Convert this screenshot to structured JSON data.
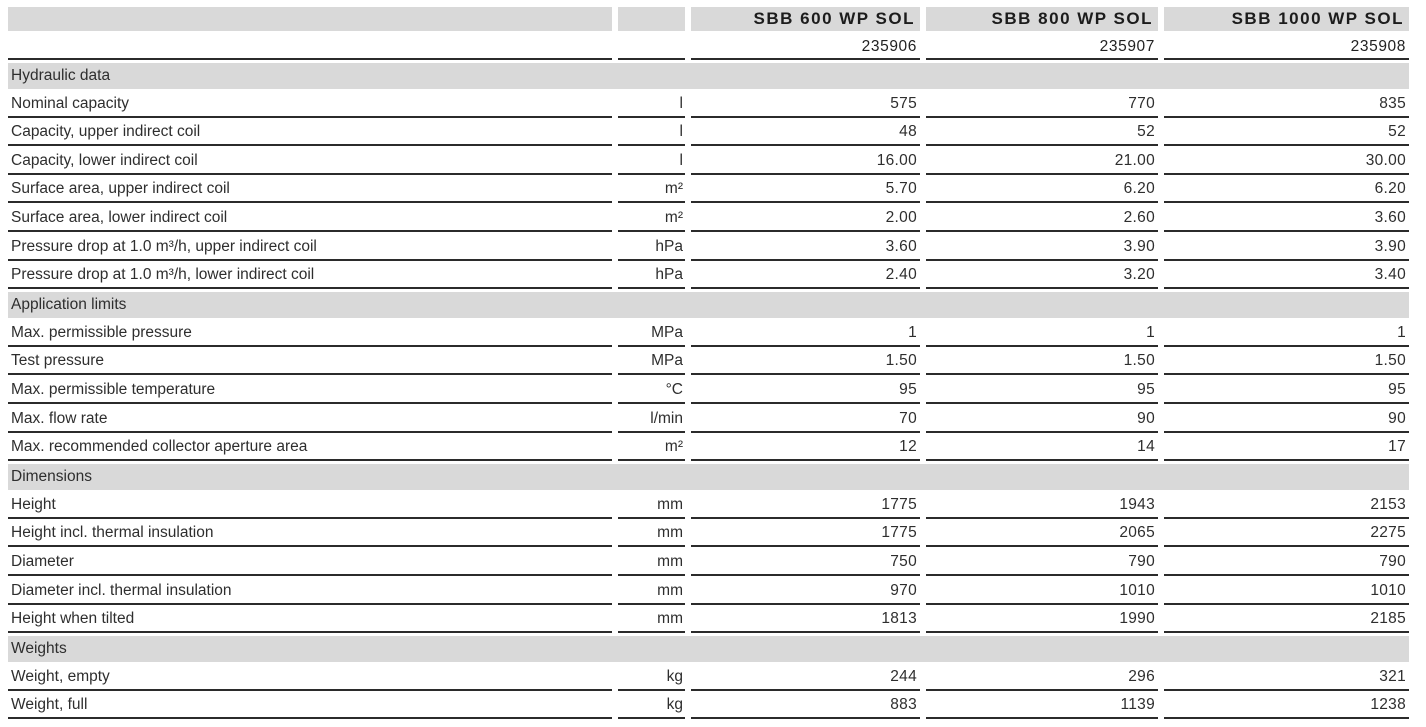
{
  "colors": {
    "header_bg": "#d9d9d9",
    "section_bg": "#d9d9d9",
    "border": "#2b2b2b",
    "text": "#2e2e2e"
  },
  "table": {
    "products": [
      {
        "name": "SBB 600 WP SOL",
        "article": "235906"
      },
      {
        "name": "SBB 800 WP SOL",
        "article": "235907"
      },
      {
        "name": "SBB 1000 WP SOL",
        "article": "235908"
      }
    ],
    "sections": [
      {
        "title": "Hydraulic data",
        "rows": [
          {
            "label": "Nominal capacity",
            "unit": "l",
            "values": [
              "575",
              "770",
              "835"
            ]
          },
          {
            "label": "Capacity, upper indirect coil",
            "unit": "l",
            "values": [
              "48",
              "52",
              "52"
            ]
          },
          {
            "label": "Capacity, lower indirect coil",
            "unit": "l",
            "values": [
              "16.00",
              "21.00",
              "30.00"
            ]
          },
          {
            "label": "Surface area, upper indirect coil",
            "unit": "m²",
            "values": [
              "5.70",
              "6.20",
              "6.20"
            ]
          },
          {
            "label": "Surface area, lower indirect coil",
            "unit": "m²",
            "values": [
              "2.00",
              "2.60",
              "3.60"
            ]
          },
          {
            "label": "Pressure drop at 1.0 m³/h, upper indirect coil",
            "unit": "hPa",
            "values": [
              "3.60",
              "3.90",
              "3.90"
            ]
          },
          {
            "label": "Pressure drop at 1.0 m³/h, lower indirect coil",
            "unit": "hPa",
            "values": [
              "2.40",
              "3.20",
              "3.40"
            ]
          }
        ]
      },
      {
        "title": "Application limits",
        "rows": [
          {
            "label": "Max. permissible pressure",
            "unit": "MPa",
            "values": [
              "1",
              "1",
              "1"
            ]
          },
          {
            "label": "Test pressure",
            "unit": "MPa",
            "values": [
              "1.50",
              "1.50",
              "1.50"
            ]
          },
          {
            "label": "Max. permissible temperature",
            "unit": "°C",
            "values": [
              "95",
              "95",
              "95"
            ]
          },
          {
            "label": "Max. flow rate",
            "unit": "l/min",
            "values": [
              "70",
              "90",
              "90"
            ]
          },
          {
            "label": "Max. recommended collector aperture area",
            "unit": "m²",
            "values": [
              "12",
              "14",
              "17"
            ]
          }
        ]
      },
      {
        "title": "Dimensions",
        "rows": [
          {
            "label": "Height",
            "unit": "mm",
            "values": [
              "1775",
              "1943",
              "2153"
            ]
          },
          {
            "label": "Height incl. thermal insulation",
            "unit": "mm",
            "values": [
              "1775",
              "2065",
              "2275"
            ]
          },
          {
            "label": "Diameter",
            "unit": "mm",
            "values": [
              "750",
              "790",
              "790"
            ]
          },
          {
            "label": "Diameter incl. thermal insulation",
            "unit": "mm",
            "values": [
              "970",
              "1010",
              "1010"
            ]
          },
          {
            "label": "Height when tilted",
            "unit": "mm",
            "values": [
              "1813",
              "1990",
              "2185"
            ]
          }
        ]
      },
      {
        "title": "Weights",
        "rows": [
          {
            "label": "Weight, empty",
            "unit": "kg",
            "values": [
              "244",
              "296",
              "321"
            ]
          },
          {
            "label": "Weight, full",
            "unit": "kg",
            "values": [
              "883",
              "1139",
              "1238"
            ]
          }
        ]
      }
    ]
  }
}
